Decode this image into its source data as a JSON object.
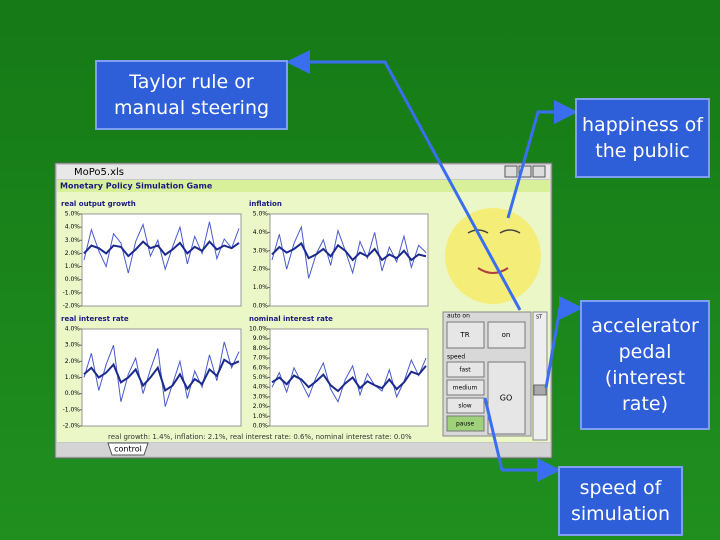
{
  "callouts": {
    "steering": "Taylor rule or manual steering",
    "happiness": "happiness of the public",
    "accelerator": "accelerator pedal (interest rate)",
    "speed": "speed of simulation"
  },
  "window": {
    "title": "MoPo5.xls",
    "header": "Monetary Policy Simulation Game",
    "panels": [
      {
        "type": "line",
        "title": "real output growth",
        "ylim": [
          -2,
          5
        ],
        "yticks": [
          {
            "value": 5,
            "label": "5.0%"
          },
          {
            "value": 4,
            "label": "4.0%"
          },
          {
            "value": 3,
            "label": "3.0%"
          },
          {
            "value": 2,
            "label": "2.0%"
          },
          {
            "value": 1,
            "label": "1.0%"
          },
          {
            "value": 0,
            "label": "0.0%"
          },
          {
            "value": -1,
            "label": "-1.0%"
          },
          {
            "value": -2,
            "label": "-2.0%"
          }
        ],
        "series": [
          {
            "color": "#4a5acc",
            "values": [
              1.5,
              3.8,
              2.2,
              1.0,
              3.5,
              2.8,
              0.5,
              2.9,
              4.2,
              1.8,
              3.0,
              0.8,
              2.5,
              4.0,
              1.2,
              3.3,
              2.0,
              4.4,
              1.6,
              3.1,
              2.4,
              3.9
            ]
          },
          {
            "color": "#1c2a8c",
            "values": [
              2.0,
              2.6,
              2.4,
              2.0,
              2.6,
              2.5,
              1.8,
              2.3,
              2.9,
              2.4,
              2.6,
              1.9,
              2.3,
              2.8,
              2.0,
              2.5,
              2.2,
              2.9,
              2.3,
              2.6,
              2.4,
              2.8
            ]
          }
        ]
      },
      {
        "type": "line",
        "title": "inflation",
        "ylim": [
          0,
          5
        ],
        "yticks": [
          {
            "value": 5,
            "label": "5.0%"
          },
          {
            "value": 4,
            "label": "4.0%"
          },
          {
            "value": 3,
            "label": "3.0%"
          },
          {
            "value": 2,
            "label": "2.0%"
          },
          {
            "value": 1,
            "label": "1.0%"
          },
          {
            "value": 0,
            "label": "0.0%"
          }
        ],
        "series": [
          {
            "color": "#4a5acc",
            "values": [
              2.5,
              3.9,
              2.0,
              3.4,
              4.3,
              1.5,
              2.8,
              3.6,
              2.2,
              4.1,
              3.0,
              1.8,
              3.5,
              2.6,
              4.0,
              1.9,
              3.2,
              2.4,
              3.8,
              2.1,
              3.3,
              2.9
            ]
          },
          {
            "color": "#1c2a8c",
            "values": [
              2.8,
              3.2,
              2.9,
              3.1,
              3.4,
              2.6,
              2.8,
              3.1,
              2.7,
              3.3,
              3.0,
              2.5,
              2.9,
              2.7,
              3.1,
              2.5,
              2.8,
              2.6,
              3.0,
              2.5,
              2.8,
              2.7
            ]
          }
        ]
      },
      {
        "type": "line",
        "title": "real interest rate",
        "ylim": [
          -2,
          4
        ],
        "yticks": [
          {
            "value": 4,
            "label": "4.0%"
          },
          {
            "value": 3,
            "label": "3.0%"
          },
          {
            "value": 2,
            "label": "2.0%"
          },
          {
            "value": 1,
            "label": "1.0%"
          },
          {
            "value": 0,
            "label": "0.0%"
          },
          {
            "value": -1,
            "label": "-1.0%"
          },
          {
            "value": -2,
            "label": "-2.0%"
          }
        ],
        "series": [
          {
            "color": "#4a5acc",
            "values": [
              1.0,
              2.5,
              0.2,
              1.8,
              3.0,
              -0.5,
              1.2,
              2.2,
              0.0,
              1.5,
              2.8,
              -0.8,
              0.6,
              2.0,
              -0.3,
              1.4,
              0.4,
              2.4,
              0.8,
              3.2,
              1.6,
              2.6
            ]
          },
          {
            "color": "#1c2a8c",
            "values": [
              1.2,
              1.6,
              1.0,
              1.3,
              1.8,
              0.7,
              1.0,
              1.5,
              0.5,
              1.0,
              1.6,
              0.2,
              0.5,
              1.2,
              0.3,
              0.9,
              0.6,
              1.5,
              1.1,
              2.1,
              1.8,
              2.0
            ]
          }
        ]
      },
      {
        "type": "line",
        "title": "nominal interest rate",
        "ylim": [
          0,
          10
        ],
        "yticks": [
          {
            "value": 10,
            "label": "10.0%"
          },
          {
            "value": 9,
            "label": "9.0%"
          },
          {
            "value": 8,
            "label": "8.0%"
          },
          {
            "value": 7,
            "label": "7.0%"
          },
          {
            "value": 6,
            "label": "6.0%"
          },
          {
            "value": 5,
            "label": "5.0%"
          },
          {
            "value": 4,
            "label": "4.0%"
          },
          {
            "value": 3,
            "label": "3.0%"
          },
          {
            "value": 2,
            "label": "2.0%"
          },
          {
            "value": 1,
            "label": "1.0%"
          },
          {
            "value": 0,
            "label": "0.0%"
          }
        ],
        "series": [
          {
            "color": "#4a5acc",
            "values": [
              4.0,
              5.5,
              3.5,
              6.0,
              4.5,
              3.0,
              5.0,
              6.5,
              3.8,
              2.5,
              4.8,
              6.2,
              3.2,
              5.4,
              4.2,
              3.6,
              5.8,
              3.0,
              4.6,
              6.8,
              5.2,
              7.0
            ]
          },
          {
            "color": "#1c2a8c",
            "values": [
              4.5,
              5.0,
              4.3,
              5.2,
              4.8,
              4.0,
              4.6,
              5.3,
              4.2,
              3.6,
              4.4,
              5.0,
              3.9,
              4.6,
              4.2,
              3.9,
              4.8,
              3.8,
              4.5,
              5.6,
              5.3,
              6.2
            ]
          }
        ]
      }
    ],
    "controls": {
      "auto_label": "auto on",
      "tr": "TR",
      "on": "on",
      "speed_label": "speed",
      "speeds": [
        "fast",
        "medium",
        "slow",
        "pause"
      ],
      "go": "GO",
      "scroll_label": "ST"
    },
    "status": "real growth: 1.4%, inflation: 2.1%, real interest rate: 0.6%, nominal interest rate: 0.0%",
    "tab": "control"
  }
}
